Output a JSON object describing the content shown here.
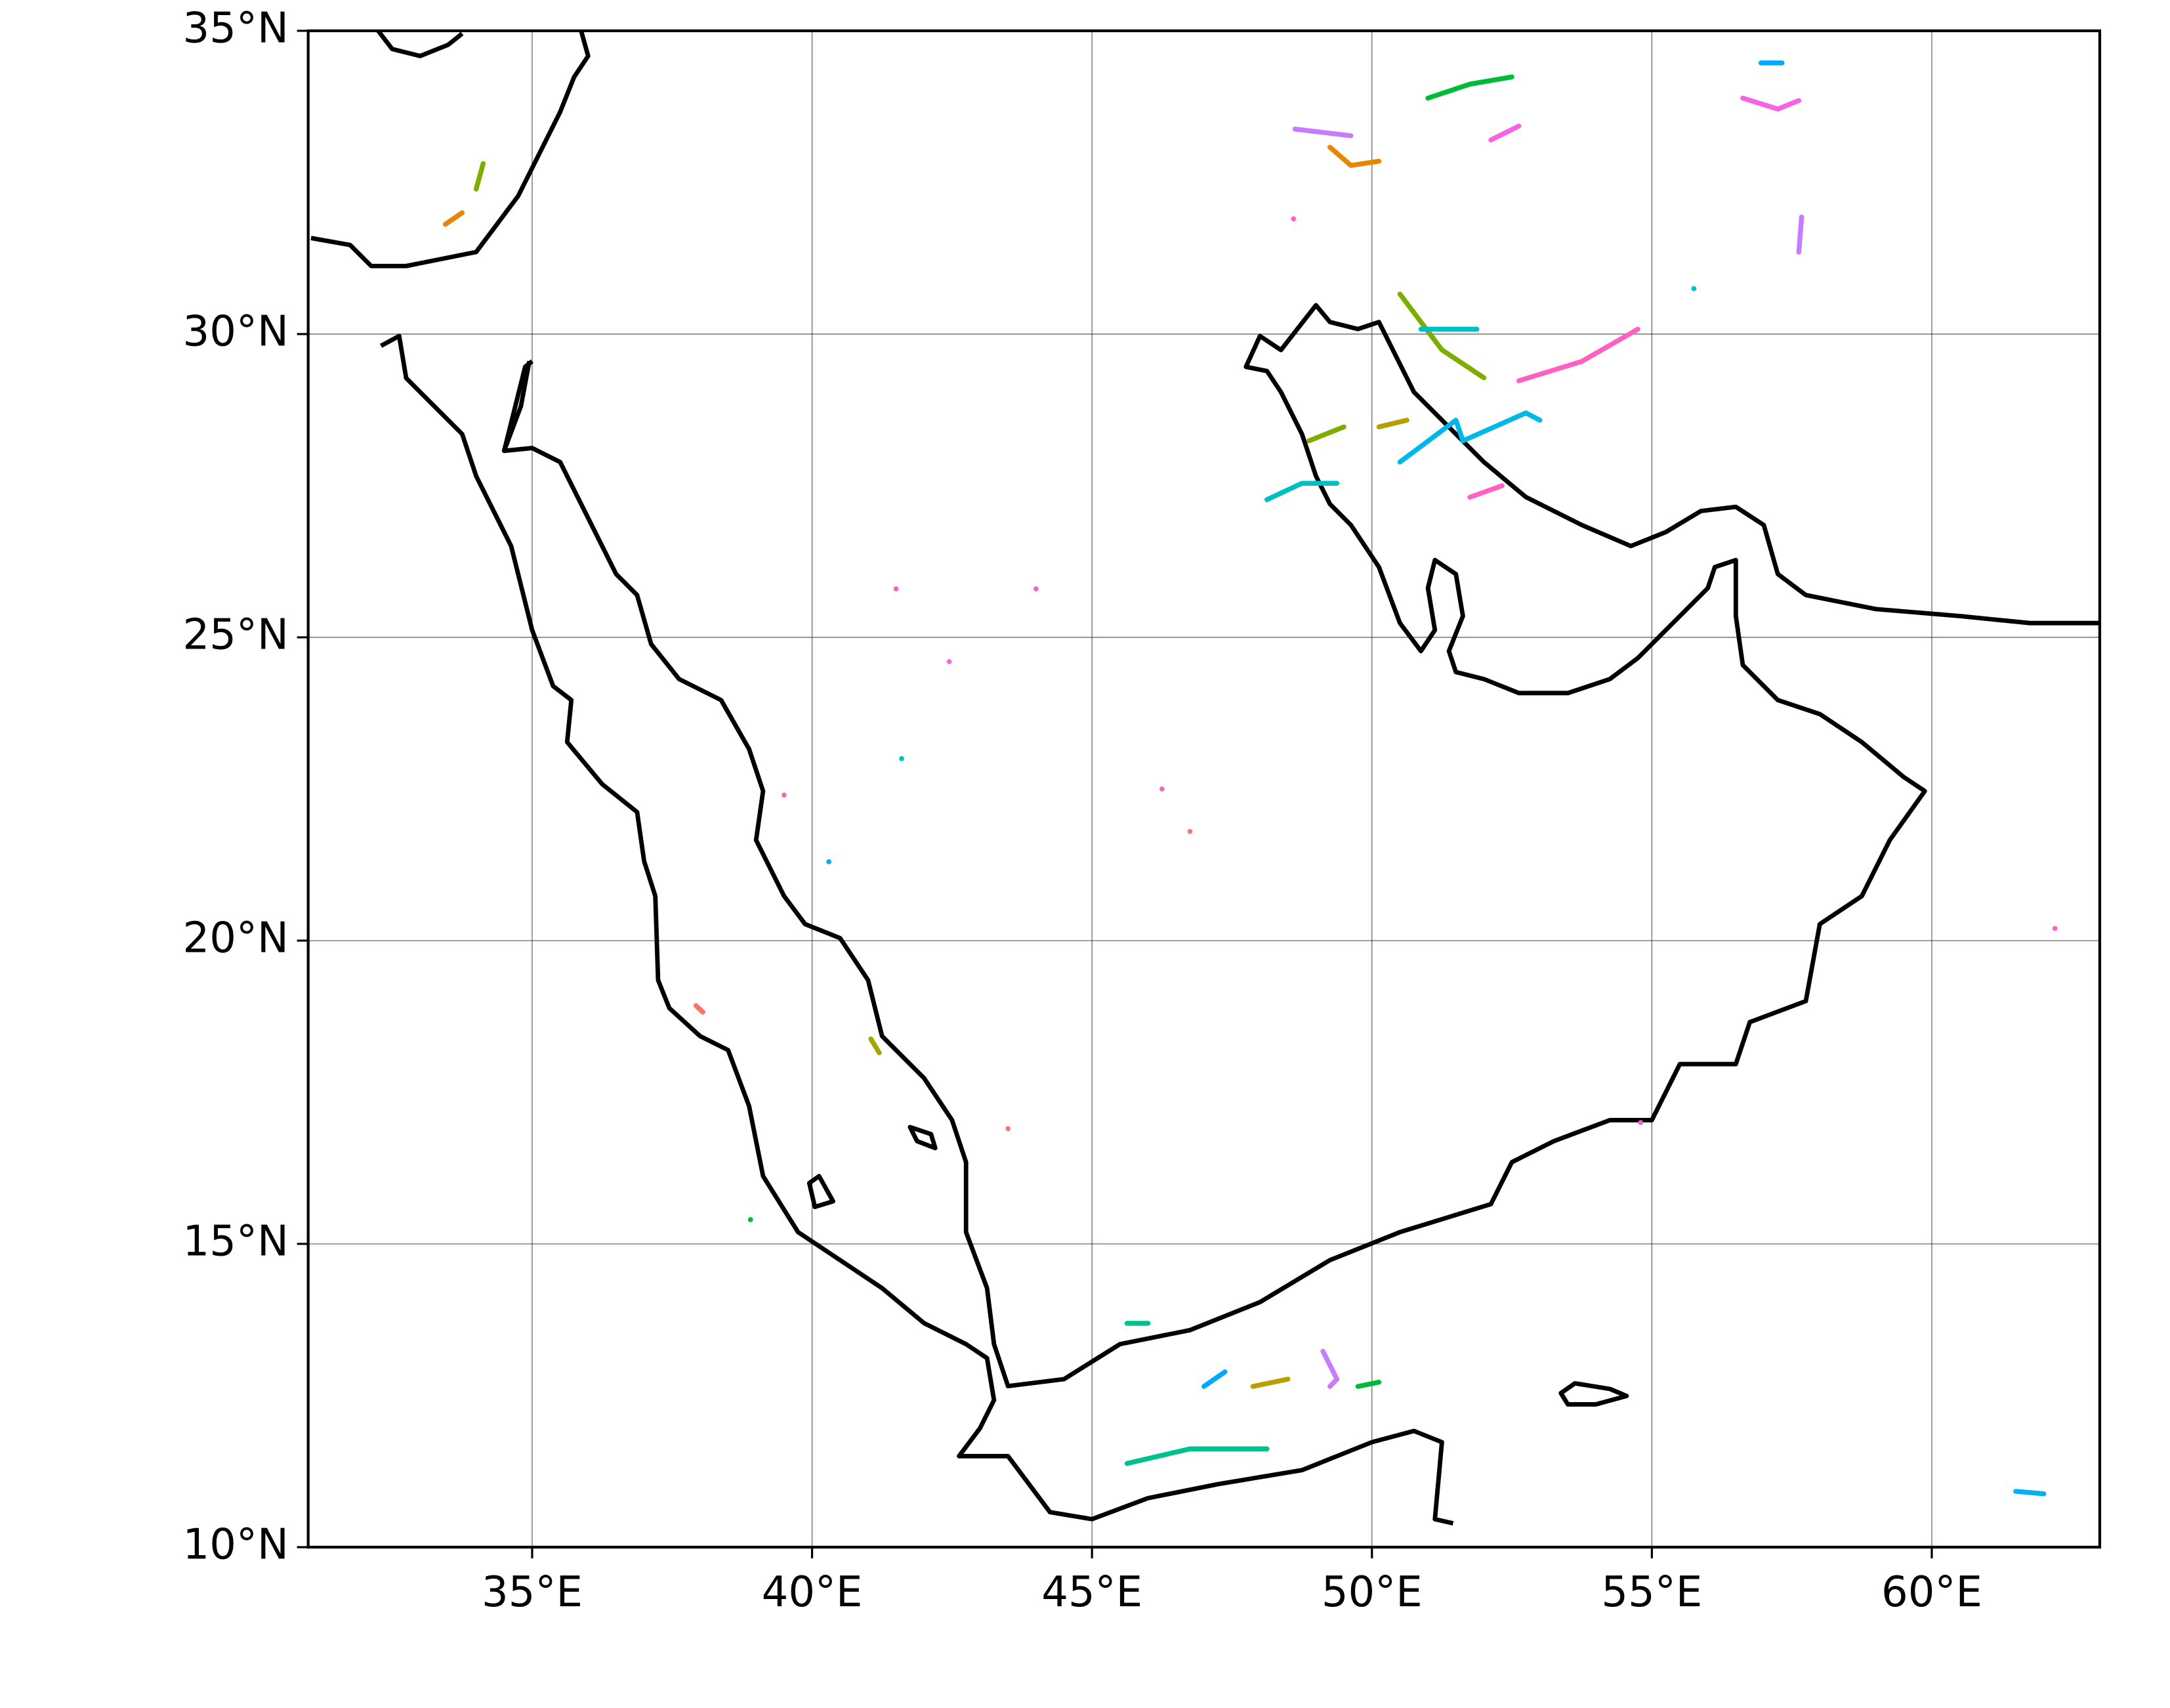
{
  "map": {
    "type": "map",
    "xlim": [
      31,
      63
    ],
    "ylim": [
      10,
      35
    ],
    "xticks": [
      {
        "value": 35,
        "label": "35°E"
      },
      {
        "value": 40,
        "label": "40°E"
      },
      {
        "value": 45,
        "label": "45°E"
      },
      {
        "value": 50,
        "label": "50°E"
      },
      {
        "value": 55,
        "label": "55°E"
      },
      {
        "value": 60,
        "label": "60°E"
      }
    ],
    "yticks": [
      {
        "value": 10,
        "label": "10°N"
      },
      {
        "value": 15,
        "label": "15°N"
      },
      {
        "value": 20,
        "label": "20°N"
      },
      {
        "value": 25,
        "label": "25°N"
      },
      {
        "value": 30,
        "label": "30°N"
      },
      {
        "value": 35,
        "label": "35°N"
      }
    ],
    "grid": true,
    "tracks": [
      {
        "color": "#00b8e7",
        "lon": [
          50.5,
          51.5,
          51.625,
          52.75,
          53.0
        ],
        "lat": [
          27.89,
          28.58,
          28.24,
          28.7,
          28.58
        ]
      },
      {
        "color": "#00bfc4",
        "lon": [
          48.125,
          48.75,
          49.375
        ],
        "lat": [
          27.27,
          27.54,
          27.54
        ]
      },
      {
        "color": "#ff61c3",
        "lon": [
          52.625,
          53.75,
          54.75
        ],
        "lat": [
          29.23,
          29.55,
          30.08
        ]
      },
      {
        "color": "#7cae00",
        "lon": [
          50.5,
          51.25,
          52.0
        ],
        "lat": [
          30.66,
          29.74,
          29.28
        ]
      },
      {
        "color": "#00ba38",
        "lon": [
          51.0,
          51.75,
          52.5
        ],
        "lat": [
          33.89,
          34.12,
          34.24
        ]
      },
      {
        "color": "#e58700",
        "lon": [
          49.25,
          49.625,
          50.125
        ],
        "lat": [
          33.08,
          32.78,
          32.85
        ]
      },
      {
        "color": "#c77cff",
        "lon": [
          48.625,
          49.625
        ],
        "lat": [
          33.38,
          33.27
        ]
      },
      {
        "color": "#f564e3",
        "lon": [
          56.625,
          57.25,
          57.625
        ],
        "lat": [
          33.89,
          33.71,
          33.85
        ]
      },
      {
        "color": "#00a9ff",
        "lon": [
          56.95,
          57.325
        ],
        "lat": [
          34.47,
          34.47
        ]
      },
      {
        "color": "#00c08b",
        "lon": [
          45.625,
          46.75,
          48.125
        ],
        "lat": [
          11.38,
          11.62,
          11.62
        ]
      },
      {
        "color": "#00a9ff",
        "lon": [
          47.0,
          47.375
        ],
        "lat": [
          12.65,
          12.89
        ]
      },
      {
        "color": "#c77cff",
        "lon": [
          49.125,
          49.375,
          49.25
        ],
        "lat": [
          13.23,
          12.77,
          12.65
        ]
      },
      {
        "color": "#b79f00",
        "lon": [
          47.875,
          48.5
        ],
        "lat": [
          12.65,
          12.77
        ]
      },
      {
        "color": "#00ba38",
        "lon": [
          49.75,
          50.125
        ],
        "lat": [
          12.65,
          12.72
        ]
      },
      {
        "color": "#00c08b",
        "lon": [
          45.625,
          46.0
        ],
        "lat": [
          13.69,
          13.69
        ]
      },
      {
        "color": "#00b0f6",
        "lon": [
          61.5,
          62.0
        ],
        "lat": [
          10.92,
          10.88
        ]
      },
      {
        "color": "#a3a500",
        "lon": [
          41.05,
          41.2
        ],
        "lat": [
          18.38,
          18.15
        ]
      },
      {
        "color": "#7cae00",
        "lon": [
          34.0,
          34.125
        ],
        "lat": [
          32.39,
          32.81
        ]
      },
      {
        "color": "#e58700",
        "lon": [
          33.45,
          33.75
        ],
        "lat": [
          31.81,
          32.0
        ]
      },
      {
        "color": "#ff61c3",
        "lon": [
          51.75,
          52.325
        ],
        "lat": [
          27.31,
          27.5
        ]
      },
      {
        "color": "#7cae00",
        "lon": [
          48.875,
          49.5
        ],
        "lat": [
          28.24,
          28.47
        ]
      },
      {
        "color": "#00bfc4",
        "lon": [
          50.875,
          51.875
        ],
        "lat": [
          30.08,
          30.08
        ]
      },
      {
        "color": "#c77cff",
        "lon": [
          57.675,
          57.625
        ],
        "lat": [
          31.93,
          31.35
        ]
      },
      {
        "color": "#b79f00",
        "lon": [
          50.125,
          50.625
        ],
        "lat": [
          28.47,
          28.58
        ]
      },
      {
        "color": "#f564e3",
        "lon": [
          52.125,
          52.625
        ],
        "lat": [
          33.2,
          33.43
        ]
      },
      {
        "color": "#f8766d",
        "lon": [
          37.925,
          38.05
        ],
        "lat": [
          18.93,
          18.82
        ]
      }
    ],
    "points": {
      "lon": [
        41.5,
        42.45,
        40.3,
        41.6,
        46.25,
        46.75,
        39.5,
        62.2,
        43.5,
        38.9,
        44.0,
        54.8,
        55.75,
        48.6
      ],
      "lat": [
        25.8,
        24.6,
        21.3,
        23.0,
        22.5,
        21.8,
        22.4,
        20.2,
        16.9,
        15.4,
        25.8,
        17.0,
        30.75,
        31.9
      ],
      "colors": [
        "#ff61c3",
        "#f564e3",
        "#00a9ff",
        "#00bfc4",
        "#ff61c3",
        "#f8766d",
        "#ff61c3",
        "#ff61c3",
        "#f8766d",
        "#00ba38",
        "#ff61c3",
        "#ff61c3",
        "#00bfc4",
        "#ff61c3"
      ]
    }
  }
}
